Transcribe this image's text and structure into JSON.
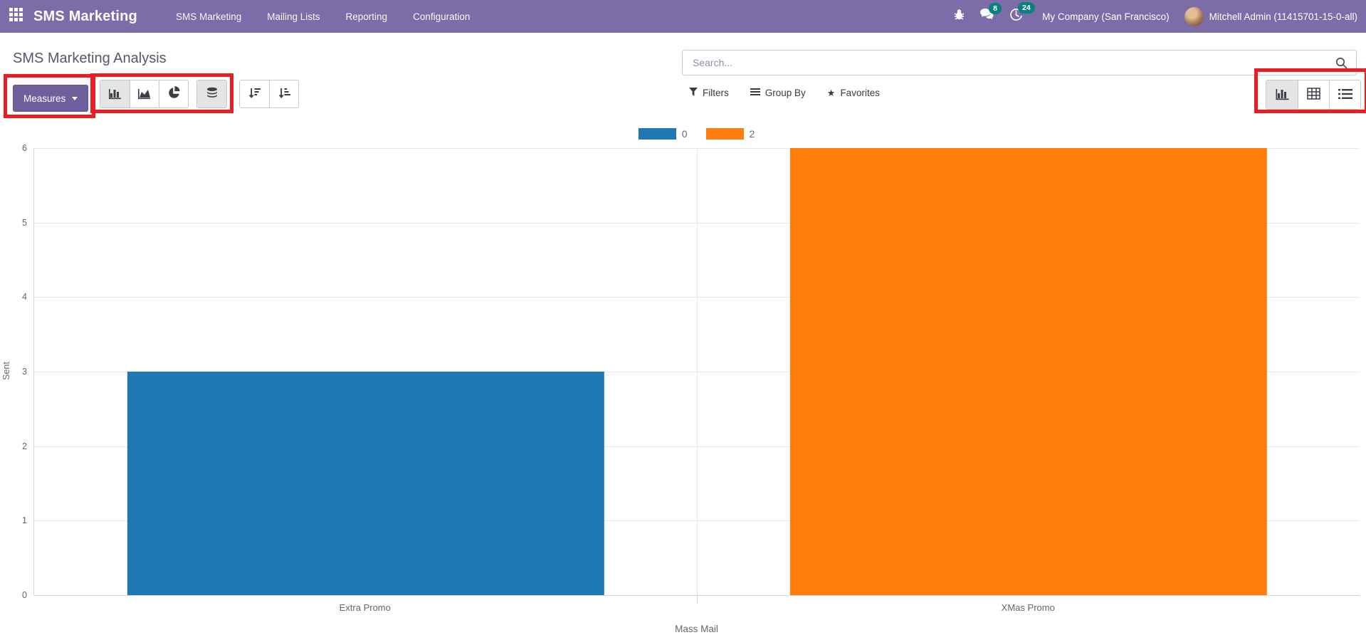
{
  "colors": {
    "navbar_bg": "#7C6CA7",
    "badge_bg": "#0B817D",
    "primary_button": "#6F5F9C",
    "annotation_red": "#EC1C24",
    "title_text": "#55576B",
    "bar_blue": "#1F77B4",
    "bar_orange": "#FF7F0E"
  },
  "navbar": {
    "brand": "SMS Marketing",
    "menus": [
      "SMS Marketing",
      "Mailing Lists",
      "Reporting",
      "Configuration"
    ],
    "messages_badge": "8",
    "activities_badge": "24",
    "company": "My Company (San Francisco)",
    "user": "Mitchell Admin (11415701-15-0-all)",
    "icons": [
      "apps-grid-icon",
      "bug-icon",
      "chat-icon",
      "clock-icon"
    ]
  },
  "control_panel": {
    "title": "SMS Marketing Analysis",
    "search_placeholder": "Search...",
    "measures_label": "Measures",
    "filters_label": "Filters",
    "group_by_label": "Group By",
    "favorites_label": "Favorites",
    "icons": {
      "search": "magnifier-icon",
      "filters": "funnel-icon",
      "group_by": "bars-icon",
      "favorites": "star-icon",
      "chart_types": [
        "bar-chart-icon",
        "area-chart-icon",
        "pie-chart-icon",
        "stacked-icon"
      ],
      "sort": [
        "sort-desc-icon",
        "sort-asc-icon"
      ],
      "views": [
        "bar-chart-icon",
        "pivot-table-icon",
        "list-icon"
      ]
    }
  },
  "chart_data": {
    "type": "bar",
    "title": "",
    "xlabel": "Mass Mail",
    "ylabel": "Sent",
    "ylim": [
      0,
      6
    ],
    "yticks": [
      0,
      1,
      2,
      3,
      4,
      5,
      6
    ],
    "grid": true,
    "legend_position": "top",
    "categories": [
      "Extra Promo",
      "XMas Promo"
    ],
    "bars": [
      {
        "category": "Extra Promo",
        "legend": "0",
        "value": 3,
        "color": "#1F77B4"
      },
      {
        "category": "XMas Promo",
        "legend": "2",
        "value": 6,
        "color": "#FF7F0E"
      }
    ],
    "legend": [
      {
        "label": "0",
        "color": "#1F77B4"
      },
      {
        "label": "2",
        "color": "#FF7F0E"
      }
    ]
  }
}
